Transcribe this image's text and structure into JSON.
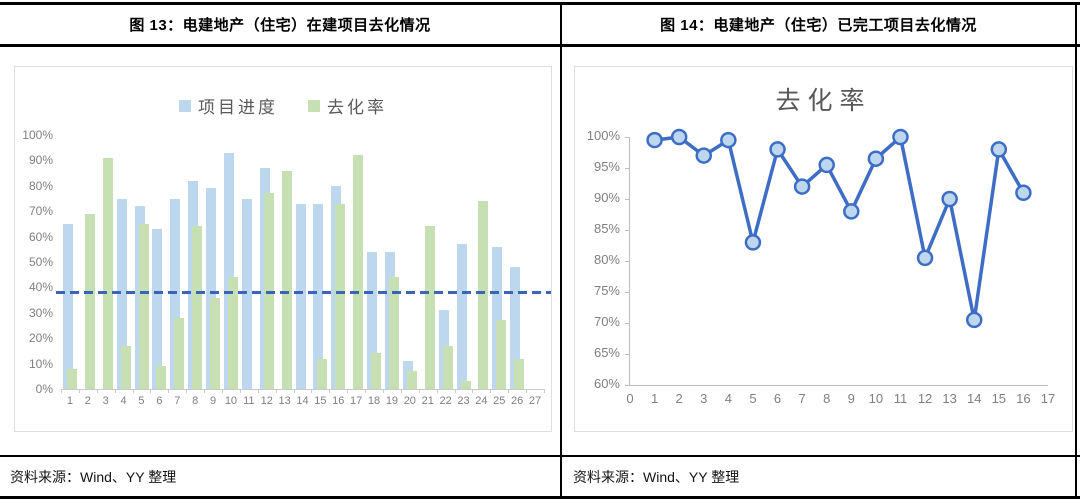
{
  "panels": {
    "left": {
      "title": "图 13：电建地产（住宅）在建项目去化情况",
      "source": "资料来源：Wind、YY 整理"
    },
    "right": {
      "title": "图 14：电建地产（住宅）已完工项目去化情况",
      "source": "资料来源：Wind、YY 整理"
    }
  },
  "colors": {
    "bar_blue": "#BDD7EE",
    "bar_green": "#C6E0B4",
    "reference_blue": "#3A64B8",
    "line_blue": "#3E6DC5",
    "marker_fill": "#BDD7EE",
    "axis_gray": "#BDBDBD",
    "label_gray": "#7F7F7F"
  },
  "chart_data": [
    {
      "type": "bar",
      "title": "",
      "legend_position": "top",
      "categories": [
        "1",
        "2",
        "3",
        "4",
        "5",
        "6",
        "7",
        "8",
        "9",
        "10",
        "11",
        "12",
        "13",
        "14",
        "15",
        "16",
        "17",
        "18",
        "19",
        "20",
        "21",
        "22",
        "23",
        "24",
        "25",
        "26",
        "27"
      ],
      "series": [
        {
          "name": "项目进度",
          "color": "#BDD7EE",
          "values": [
            65,
            null,
            null,
            75,
            72,
            63,
            75,
            82,
            79,
            93,
            75,
            87,
            null,
            73,
            73,
            80,
            null,
            54,
            54,
            11,
            null,
            31,
            57,
            null,
            56,
            48,
            null
          ]
        },
        {
          "name": "去化率",
          "color": "#C6E0B4",
          "values": [
            8,
            69,
            91,
            17,
            65,
            9,
            28,
            64,
            36,
            44,
            null,
            77,
            86,
            null,
            12,
            73,
            92,
            14,
            44,
            7,
            64,
            17,
            3,
            74,
            27,
            12,
            null
          ]
        }
      ],
      "reference_line": {
        "value": 38,
        "style": "dashed",
        "color": "#3A64B8"
      },
      "ylim": [
        0,
        100
      ],
      "ytick_step": 10,
      "ytick_labels": [
        "0%",
        "10%",
        "20%",
        "30%",
        "40%",
        "50%",
        "60%",
        "70%",
        "80%",
        "90%",
        "100%"
      ],
      "grid": false
    },
    {
      "type": "line",
      "title": "去化率",
      "x": [
        1,
        2,
        3,
        4,
        5,
        6,
        7,
        8,
        9,
        10,
        11,
        12,
        13,
        14,
        15,
        16
      ],
      "values": [
        99.5,
        100,
        97,
        99.5,
        83,
        98,
        92,
        95.5,
        88,
        96.5,
        100,
        80.5,
        90,
        70.5,
        98,
        91
      ],
      "xlim": [
        0,
        17
      ],
      "xtick_labels": [
        "0",
        "1",
        "2",
        "3",
        "4",
        "5",
        "6",
        "7",
        "8",
        "9",
        "10",
        "11",
        "12",
        "13",
        "14",
        "15",
        "16",
        "17"
      ],
      "ylim": [
        60,
        100
      ],
      "ytick_step": 5,
      "ytick_labels": [
        "60%",
        "65%",
        "70%",
        "75%",
        "80%",
        "85%",
        "90%",
        "95%",
        "100%"
      ],
      "grid": false
    }
  ]
}
